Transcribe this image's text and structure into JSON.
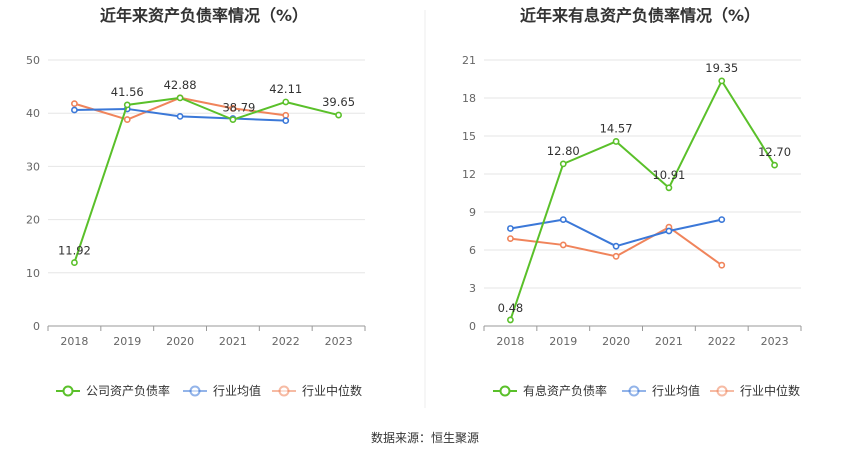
{
  "source_text": "数据来源：恒生聚源",
  "chart_data": [
    {
      "type": "line",
      "title": "近年来资产负债率情况（%）",
      "categories": [
        "2018",
        "2019",
        "2020",
        "2021",
        "2022",
        "2023"
      ],
      "ylim": [
        0,
        50
      ],
      "yticks": [
        "0",
        "10",
        "20",
        "30",
        "40",
        "50"
      ],
      "grid": true,
      "legend_position": "bottom",
      "series": [
        {
          "name": "公司资产负债率",
          "color": "#5ac02a",
          "values": [
            11.92,
            41.56,
            42.88,
            38.79,
            42.11,
            39.65
          ],
          "labels": [
            "11.92",
            "41.56",
            "42.88",
            "38.79",
            "42.11",
            "39.65"
          ]
        },
        {
          "name": "行业均值",
          "color": "#3b78d8",
          "values": [
            40.6,
            40.8,
            39.4,
            39.0,
            38.6,
            null
          ]
        },
        {
          "name": "行业中位数",
          "color": "#f0845b",
          "values": [
            41.8,
            38.8,
            42.9,
            40.9,
            39.6,
            null
          ]
        }
      ]
    },
    {
      "type": "line",
      "title": "近年来有息资产负债率情况（%）",
      "categories": [
        "2018",
        "2019",
        "2020",
        "2021",
        "2022",
        "2023"
      ],
      "ylim": [
        0,
        21
      ],
      "yticks": [
        "0",
        "3",
        "6",
        "9",
        "12",
        "15",
        "18",
        "21"
      ],
      "grid": true,
      "legend_position": "bottom",
      "series": [
        {
          "name": "有息资产负债率",
          "color": "#5ac02a",
          "values": [
            0.48,
            12.8,
            14.57,
            10.91,
            19.35,
            12.7
          ],
          "labels": [
            "0.48",
            "12.80",
            "14.57",
            "10.91",
            "19.35",
            "12.70"
          ]
        },
        {
          "name": "行业均值",
          "color": "#3b78d8",
          "values": [
            7.7,
            8.4,
            6.3,
            7.5,
            8.4,
            null
          ]
        },
        {
          "name": "行业中位数",
          "color": "#f0845b",
          "values": [
            6.9,
            6.4,
            5.5,
            7.8,
            4.8,
            null
          ]
        }
      ]
    }
  ]
}
